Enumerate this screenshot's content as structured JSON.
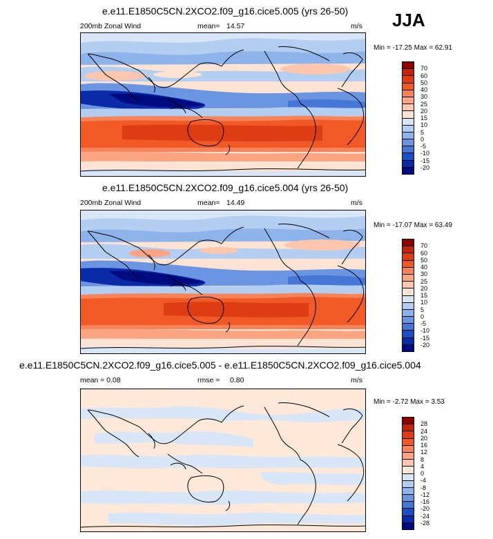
{
  "season": "JJA",
  "panels": [
    {
      "title": "e.e11.E1850C5CN.2XCO2.f09_g16.cice5.005 (yrs 26-50)",
      "left_label": "200mb Zonal Wind",
      "stat_label": "mean=",
      "stat_value": "14.57",
      "units": "m/s",
      "minmax": "Min = -17.25 Max =  62.91",
      "colorbar_labels": [
        "70",
        "60",
        "50",
        "40",
        "30",
        "25",
        "20",
        "15",
        "10",
        "5",
        "0",
        "-5",
        "-10",
        "-15",
        "-20"
      ]
    },
    {
      "title": "e.e11.E1850C5CN.2XCO2.f09_g16.cice5.004 (yrs 26-50)",
      "left_label": "200mb Zonal Wind",
      "stat_label": "mean=",
      "stat_value": "14.49",
      "units": "m/s",
      "minmax": "Min = -17.07 Max =  63.49",
      "colorbar_labels": [
        "70",
        "60",
        "50",
        "40",
        "30",
        "25",
        "20",
        "15",
        "10",
        "5",
        "0",
        "-5",
        "-10",
        "-15",
        "-20"
      ]
    },
    {
      "title": "e.e11.E1850C5CN.2XCO2.f09_g16.cice5.005 - e.e11.E1850C5CN.2XCO2.f09_g16.cice5.004",
      "left_label": "mean =   0.08",
      "stat_label": "rmse =",
      "stat_value": "0.80",
      "units": "m/s",
      "minmax": "Min = -2.72 Max =   3.53",
      "colorbar_labels": [
        "28",
        "24",
        "20",
        "16",
        "12",
        "8",
        "4",
        "0",
        "-4",
        "-8",
        "-12",
        "-16",
        "-20",
        "-24",
        "-28"
      ]
    }
  ],
  "colors": {
    "field_scale": [
      "#8b0000",
      "#c1260d",
      "#de3c14",
      "#f15a26",
      "#f7835a",
      "#fba585",
      "#fcc7ae",
      "#fde3d4",
      "#d8e6f7",
      "#b3cef1",
      "#8eb3ea",
      "#6b94e1",
      "#4676d6",
      "#1e4ec7",
      "#0a2aa8",
      "#000b80"
    ],
    "diff_scale": [
      "#8b0000",
      "#c1260d",
      "#de3c14",
      "#f15a26",
      "#f7835a",
      "#fba585",
      "#fcc7ae",
      "#fde8da",
      "#d8e6f7",
      "#b3cef1",
      "#8eb3ea",
      "#6b94e1",
      "#4676d6",
      "#1e4ec7",
      "#0a2aa8",
      "#000b80"
    ]
  }
}
